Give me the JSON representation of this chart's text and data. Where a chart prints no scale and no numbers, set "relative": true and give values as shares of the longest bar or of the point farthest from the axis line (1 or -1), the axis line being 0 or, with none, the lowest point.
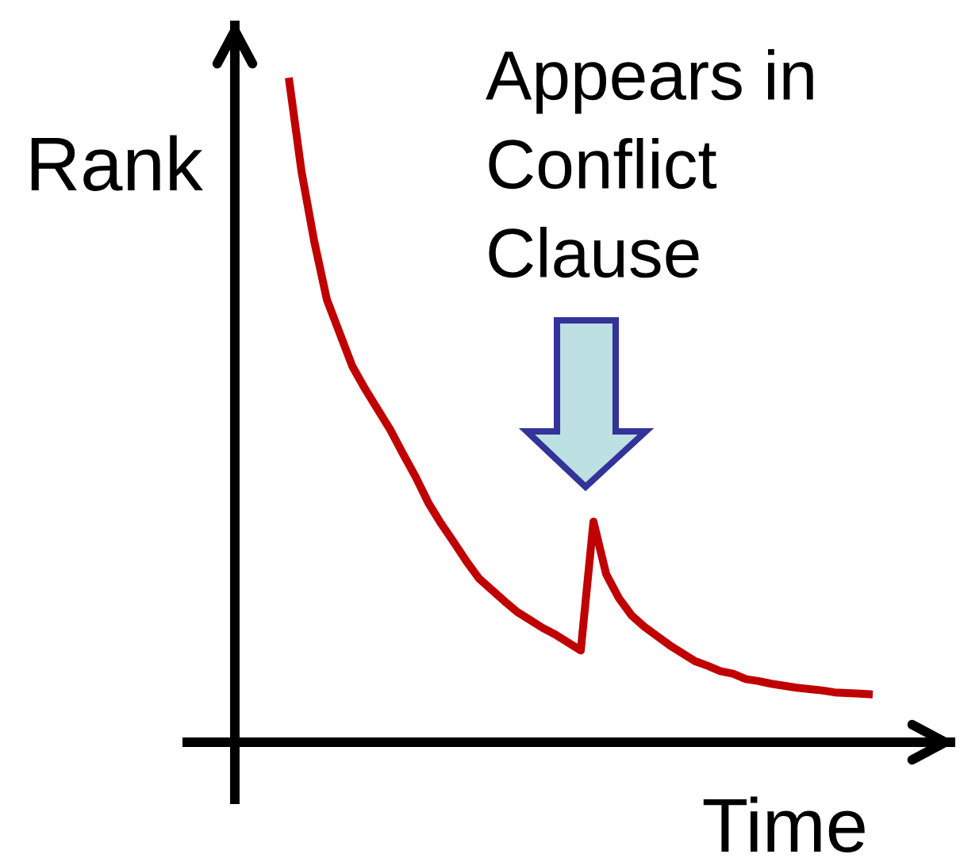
{
  "chart_data": {
    "type": "line",
    "relative": true,
    "xlabel": "Time",
    "ylabel": "Rank",
    "annotations": [
      "Appears in\nConflict\nClause"
    ],
    "categories": [
      null,
      null,
      null,
      null,
      null,
      null,
      null,
      null,
      null,
      null,
      null,
      null,
      null,
      null,
      null,
      null,
      null,
      null,
      null,
      null,
      null,
      null,
      null,
      null,
      null,
      null,
      null,
      null,
      null,
      null,
      null,
      null,
      null,
      null,
      null,
      null,
      null,
      null,
      null,
      null,
      null,
      null,
      null,
      null,
      null,
      null,
      null
    ],
    "series": [
      {
        "color": "#c00000",
        "values": [
          1.0,
          0.859,
          0.754,
          0.666,
          0.616,
          0.566,
          0.532,
          0.501,
          0.47,
          0.434,
          0.399,
          0.36,
          0.329,
          0.301,
          0.272,
          0.246,
          0.229,
          0.212,
          0.196,
          0.184,
          0.172,
          0.162,
          0.15,
          0.138,
          0.332,
          0.253,
          0.217,
          0.191,
          0.174,
          0.16,
          0.146,
          0.134,
          0.122,
          0.115,
          0.107,
          0.103,
          0.095,
          0.092,
          0.088,
          0.085,
          0.082,
          0.08,
          0.078,
          0.075,
          0.074,
          0.073,
          0.072
        ]
      }
    ]
  }
}
